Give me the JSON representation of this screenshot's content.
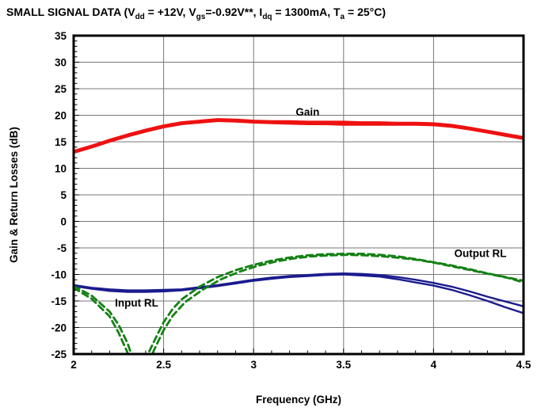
{
  "title": {
    "full": "SMALL SIGNAL DATA (Vdd = +12V, Vgs=-0.92V**, Idq = 1300mA, Ta = 25°C)",
    "parts": [
      {
        "t": "SMALL SIGNAL DATA (V"
      },
      {
        "t": "dd",
        "sub": true
      },
      {
        "t": " = +12V, V"
      },
      {
        "t": "gs",
        "sub": true
      },
      {
        "t": "=-0.92V**, I"
      },
      {
        "t": "dq",
        "sub": true
      },
      {
        "t": " = 1300mA, T"
      },
      {
        "t": "a",
        "sub": true
      },
      {
        "t": " = 25°C)"
      }
    ]
  },
  "chart_data": {
    "type": "line",
    "title": "SMALL SIGNAL DATA (Vdd = +12V, Vgs=-0.92V**, Idq = 1300mA, Ta = 25°C)",
    "xlabel": "Frequency (GHz)",
    "ylabel": "Gain & Return Losses (dB)",
    "xlim": [
      2,
      4.5
    ],
    "ylim": [
      -25,
      35
    ],
    "x_ticks": [
      2,
      2.5,
      3,
      3.5,
      4,
      4.5
    ],
    "x_tick_labels": [
      "2",
      "2.5",
      "3",
      "3.5",
      "4",
      "4.5"
    ],
    "y_ticks": [
      35,
      30,
      25,
      20,
      15,
      10,
      5,
      0,
      -5,
      -10,
      -15,
      -20,
      -25
    ],
    "y_tick_labels": [
      "35",
      "30",
      "25",
      "20",
      "15",
      "10",
      "5",
      "0",
      "-5",
      "-10",
      "-15",
      "-20",
      "-25"
    ],
    "x_minor_step": 0.1,
    "y_minor_step": 1,
    "grid": true,
    "grid_color": "#777777",
    "frame_color": "#000000",
    "legend_position": "none",
    "colors": {
      "gain": "#ee1111",
      "input_rl": "#1b1b8e",
      "output_rl": "#148114"
    },
    "series": [
      {
        "name": "Gain",
        "color": "#ee1111",
        "dash": null,
        "width": 3.6,
        "points": [
          [
            2,
            13
          ],
          [
            2.1,
            14
          ],
          [
            2.2,
            15.1
          ],
          [
            2.3,
            16.1
          ],
          [
            2.4,
            17
          ],
          [
            2.5,
            17.8
          ],
          [
            2.6,
            18.4
          ],
          [
            2.7,
            18.7
          ],
          [
            2.8,
            19
          ],
          [
            2.9,
            18.9
          ],
          [
            3,
            18.7
          ],
          [
            3.1,
            18.6
          ],
          [
            3.2,
            18.5
          ],
          [
            3.3,
            18.4
          ],
          [
            3.4,
            18.4
          ],
          [
            3.5,
            18.3
          ],
          [
            3.6,
            18.3
          ],
          [
            3.7,
            18.3
          ],
          [
            3.8,
            18.3
          ],
          [
            3.9,
            18.3
          ],
          [
            4,
            18.2
          ],
          [
            4.1,
            17.9
          ],
          [
            4.2,
            17.4
          ],
          [
            4.3,
            16.8
          ],
          [
            4.4,
            16.2
          ],
          [
            4.5,
            15.6
          ]
        ]
      },
      {
        "name": "Gain trace 2",
        "color": "#ee1111",
        "dash": null,
        "width": 3.6,
        "points": [
          [
            2,
            13.2
          ],
          [
            2.1,
            14.2
          ],
          [
            2.2,
            15.3
          ],
          [
            2.3,
            16.3
          ],
          [
            2.4,
            17.2
          ],
          [
            2.5,
            18
          ],
          [
            2.6,
            18.6
          ],
          [
            2.7,
            18.9
          ],
          [
            2.8,
            19.2
          ],
          [
            2.9,
            19.1
          ],
          [
            3,
            18.9
          ],
          [
            3.1,
            18.8
          ],
          [
            3.2,
            18.8
          ],
          [
            3.3,
            18.7
          ],
          [
            3.4,
            18.7
          ],
          [
            3.5,
            18.7
          ],
          [
            3.6,
            18.6
          ],
          [
            3.7,
            18.6
          ],
          [
            3.8,
            18.5
          ],
          [
            3.9,
            18.5
          ],
          [
            4,
            18.4
          ],
          [
            4.1,
            18.1
          ],
          [
            4.2,
            17.6
          ],
          [
            4.3,
            17
          ],
          [
            4.4,
            16.4
          ],
          [
            4.5,
            15.8
          ]
        ]
      },
      {
        "name": "Input RL",
        "color": "#1b1b8e",
        "dash": null,
        "width": 2.4,
        "points": [
          [
            2,
            -12
          ],
          [
            2.1,
            -12.5
          ],
          [
            2.2,
            -12.8
          ],
          [
            2.3,
            -13
          ],
          [
            2.4,
            -13
          ],
          [
            2.5,
            -12.9
          ],
          [
            2.6,
            -12.8
          ],
          [
            2.7,
            -12.4
          ],
          [
            2.8,
            -12
          ],
          [
            2.9,
            -11.5
          ],
          [
            3,
            -11
          ],
          [
            3.1,
            -10.6
          ],
          [
            3.2,
            -10.3
          ],
          [
            3.3,
            -10.1
          ],
          [
            3.4,
            -9.9
          ],
          [
            3.5,
            -9.8
          ],
          [
            3.6,
            -9.9
          ],
          [
            3.7,
            -10.1
          ],
          [
            3.8,
            -10.5
          ],
          [
            3.9,
            -11
          ],
          [
            4,
            -11.6
          ],
          [
            4.1,
            -12.3
          ],
          [
            4.2,
            -13.2
          ],
          [
            4.3,
            -14.2
          ],
          [
            4.4,
            -15.1
          ],
          [
            4.5,
            -16
          ]
        ]
      },
      {
        "name": "Input RL trace 2",
        "color": "#1b1b8e",
        "dash": null,
        "width": 2.4,
        "points": [
          [
            2,
            -12.2
          ],
          [
            2.1,
            -12.7
          ],
          [
            2.2,
            -13.1
          ],
          [
            2.3,
            -13.3
          ],
          [
            2.4,
            -13.3
          ],
          [
            2.5,
            -13.2
          ],
          [
            2.6,
            -13
          ],
          [
            2.7,
            -12.6
          ],
          [
            2.8,
            -12.2
          ],
          [
            2.9,
            -11.7
          ],
          [
            3,
            -11.2
          ],
          [
            3.1,
            -10.8
          ],
          [
            3.2,
            -10.5
          ],
          [
            3.3,
            -10.3
          ],
          [
            3.4,
            -10.1
          ],
          [
            3.5,
            -10
          ],
          [
            3.6,
            -10.2
          ],
          [
            3.7,
            -10.4
          ],
          [
            3.8,
            -10.9
          ],
          [
            3.9,
            -11.5
          ],
          [
            4,
            -12.1
          ],
          [
            4.1,
            -12.9
          ],
          [
            4.2,
            -13.9
          ],
          [
            4.3,
            -15
          ],
          [
            4.4,
            -16.2
          ],
          [
            4.5,
            -17.3
          ]
        ]
      },
      {
        "name": "Output RL",
        "color": "#148114",
        "dash": "8 5",
        "width": 2.8,
        "points": [
          [
            2,
            -12.2
          ],
          [
            2.1,
            -14
          ],
          [
            2.2,
            -17
          ],
          [
            2.25,
            -19.5
          ],
          [
            2.3,
            -23
          ],
          [
            2.33,
            -26
          ],
          [
            2.38,
            -27
          ],
          [
            2.42,
            -24.5
          ],
          [
            2.47,
            -21
          ],
          [
            2.5,
            -19
          ],
          [
            2.55,
            -16.5
          ],
          [
            2.6,
            -14.7
          ],
          [
            2.7,
            -12.3
          ],
          [
            2.8,
            -10.5
          ],
          [
            2.9,
            -9.2
          ],
          [
            3,
            -8.2
          ],
          [
            3.1,
            -7.4
          ],
          [
            3.2,
            -6.8
          ],
          [
            3.3,
            -6.4
          ],
          [
            3.4,
            -6.2
          ],
          [
            3.5,
            -6.1
          ],
          [
            3.6,
            -6.1
          ],
          [
            3.7,
            -6.3
          ],
          [
            3.8,
            -6.6
          ],
          [
            3.9,
            -7.1
          ],
          [
            4,
            -7.7
          ],
          [
            4.1,
            -8.3
          ],
          [
            4.2,
            -9
          ],
          [
            4.3,
            -9.8
          ],
          [
            4.4,
            -10.5
          ],
          [
            4.5,
            -11.2
          ]
        ]
      },
      {
        "name": "Output RL trace 2",
        "color": "#148114",
        "dash": "8 5",
        "width": 2.8,
        "points": [
          [
            2,
            -12.5
          ],
          [
            2.1,
            -14.6
          ],
          [
            2.2,
            -17.9
          ],
          [
            2.25,
            -21
          ],
          [
            2.3,
            -24.8
          ],
          [
            2.35,
            -28
          ],
          [
            2.4,
            -28
          ],
          [
            2.45,
            -24
          ],
          [
            2.5,
            -20.5
          ],
          [
            2.55,
            -17.8
          ],
          [
            2.62,
            -15.2
          ],
          [
            2.72,
            -12.8
          ],
          [
            2.82,
            -10.9
          ],
          [
            2.92,
            -9.5
          ],
          [
            3.02,
            -8.4
          ],
          [
            3.12,
            -7.6
          ],
          [
            3.22,
            -7
          ],
          [
            3.32,
            -6.6
          ],
          [
            3.42,
            -6.4
          ],
          [
            3.52,
            -6.3
          ],
          [
            3.62,
            -6.4
          ],
          [
            3.72,
            -6.6
          ],
          [
            3.82,
            -6.9
          ],
          [
            3.92,
            -7.3
          ],
          [
            4.02,
            -7.9
          ],
          [
            4.12,
            -8.6
          ],
          [
            4.22,
            -9.3
          ],
          [
            4.32,
            -10
          ],
          [
            4.42,
            -10.7
          ],
          [
            4.5,
            -11.5
          ]
        ]
      }
    ],
    "annotations": [
      {
        "text": "Gain",
        "x": 3.3,
        "y": 20.7
      },
      {
        "text": "Input RL",
        "x": 2.35,
        "y": -15.3
      },
      {
        "text": "Output RL",
        "x": 4.26,
        "y": -6.0
      }
    ]
  }
}
